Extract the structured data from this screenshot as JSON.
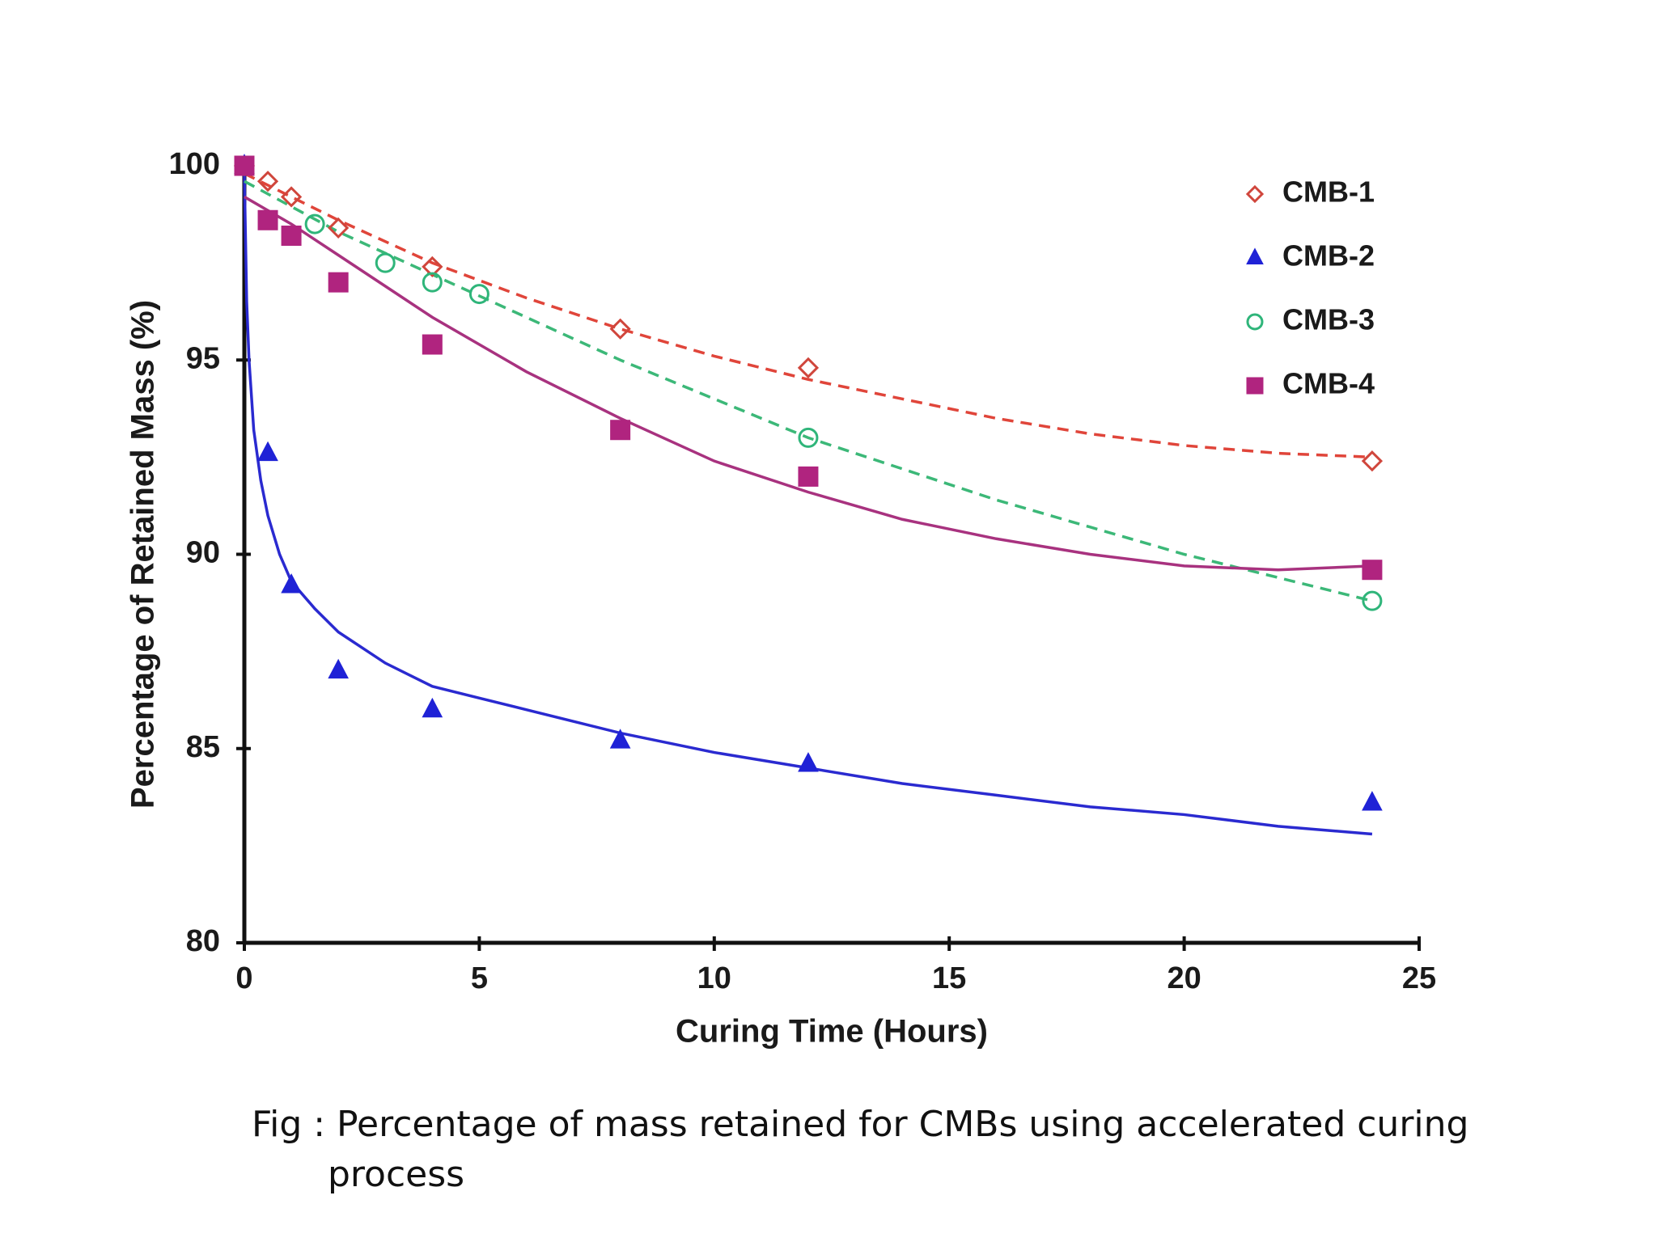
{
  "chart_data": {
    "type": "scatter",
    "xlabel": "Curing Time (Hours)",
    "ylabel": "Percentage of Retained Mass (%)",
    "xlim": [
      0,
      25
    ],
    "xticks": [
      0,
      5,
      10,
      15,
      20,
      25
    ],
    "ylim": [
      80,
      100
    ],
    "yticks": [
      80,
      85,
      90,
      95,
      100
    ],
    "grid": false,
    "legend": "upper right",
    "series": [
      {
        "name": "CMB-1",
        "color": "#d0463c",
        "marker": "diamond",
        "filled": false,
        "x": [
          0,
          0.5,
          1,
          2,
          4,
          8,
          12,
          24
        ],
        "values": [
          100,
          99.6,
          99.2,
          98.4,
          97.4,
          95.8,
          94.8,
          92.4
        ],
        "trend": {
          "style": "dashed",
          "color": "#e0453a",
          "x": [
            0,
            1,
            2,
            4,
            6,
            8,
            10,
            12,
            14,
            16,
            18,
            20,
            22,
            24
          ],
          "values": [
            99.8,
            99.2,
            98.6,
            97.5,
            96.6,
            95.8,
            95.1,
            94.5,
            94.0,
            93.5,
            93.1,
            92.8,
            92.6,
            92.5
          ]
        }
      },
      {
        "name": "CMB-2",
        "color": "#1f22d6",
        "marker": "triangle",
        "filled": true,
        "x": [
          0,
          0.5,
          1,
          2,
          4,
          8,
          12,
          24
        ],
        "values": [
          100,
          92.6,
          89.2,
          87.0,
          86.0,
          85.2,
          84.6,
          83.6
        ],
        "trend": {
          "style": "solid",
          "color": "#2a2ad0",
          "x": [
            0,
            0.05,
            0.1,
            0.2,
            0.35,
            0.5,
            0.75,
            1,
            1.5,
            2,
            3,
            4,
            5,
            6,
            8,
            10,
            12,
            14,
            16,
            18,
            20,
            22,
            24
          ],
          "values": [
            99.8,
            96.5,
            95.0,
            93.2,
            91.9,
            91.0,
            90.0,
            89.3,
            88.6,
            88.0,
            87.2,
            86.6,
            86.3,
            86.0,
            85.4,
            84.9,
            84.5,
            84.1,
            83.8,
            83.5,
            83.3,
            83.0,
            82.8
          ]
        }
      },
      {
        "name": "CMB-3",
        "color": "#2fb57a",
        "marker": "circle",
        "filled": false,
        "x": [
          0,
          1.5,
          3,
          4,
          5,
          12,
          24
        ],
        "values": [
          100,
          98.5,
          97.5,
          97.0,
          96.7,
          93.0,
          88.8
        ],
        "trend": {
          "style": "dashed",
          "color": "#3cb878",
          "x": [
            0,
            2,
            4,
            6,
            8,
            10,
            12,
            14,
            16,
            18,
            20,
            22,
            24
          ],
          "values": [
            99.6,
            98.3,
            97.2,
            96.1,
            95.0,
            94.0,
            93.0,
            92.2,
            91.4,
            90.7,
            90.0,
            89.4,
            88.8
          ]
        }
      },
      {
        "name": "CMB-4",
        "color": "#b0247f",
        "marker": "square",
        "filled": true,
        "x": [
          0,
          0.5,
          1,
          2,
          4,
          8,
          12,
          24
        ],
        "values": [
          100,
          98.6,
          98.2,
          97.0,
          95.4,
          93.2,
          92.0,
          89.6
        ],
        "trend": {
          "style": "solid",
          "color": "#a8327f",
          "x": [
            0,
            1,
            2,
            4,
            6,
            8,
            10,
            12,
            14,
            16,
            18,
            20,
            22,
            24
          ],
          "values": [
            99.2,
            98.5,
            97.7,
            96.1,
            94.7,
            93.5,
            92.4,
            91.6,
            90.9,
            90.4,
            90.0,
            89.7,
            89.6,
            89.7
          ]
        }
      }
    ],
    "caption": "Fig : Percentage of mass retained for CMBs using accelerated curing process"
  }
}
